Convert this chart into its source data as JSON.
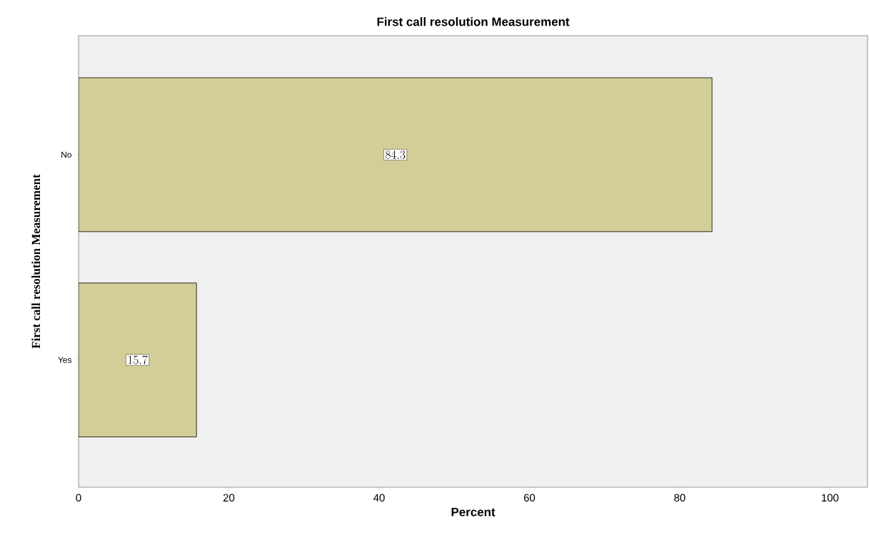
{
  "chart_data": {
    "type": "bar",
    "orientation": "horizontal",
    "title": "First call resolution Measurement",
    "xlabel": "Percent",
    "ylabel": "First call resolution Measurement",
    "categories": [
      "No",
      "Yes"
    ],
    "values": [
      84.3,
      15.7
    ],
    "color": "#d3ce97",
    "xlim": [
      0,
      105
    ],
    "xticks": [
      0,
      20,
      40,
      60,
      80,
      100
    ],
    "data_labels": true
  }
}
